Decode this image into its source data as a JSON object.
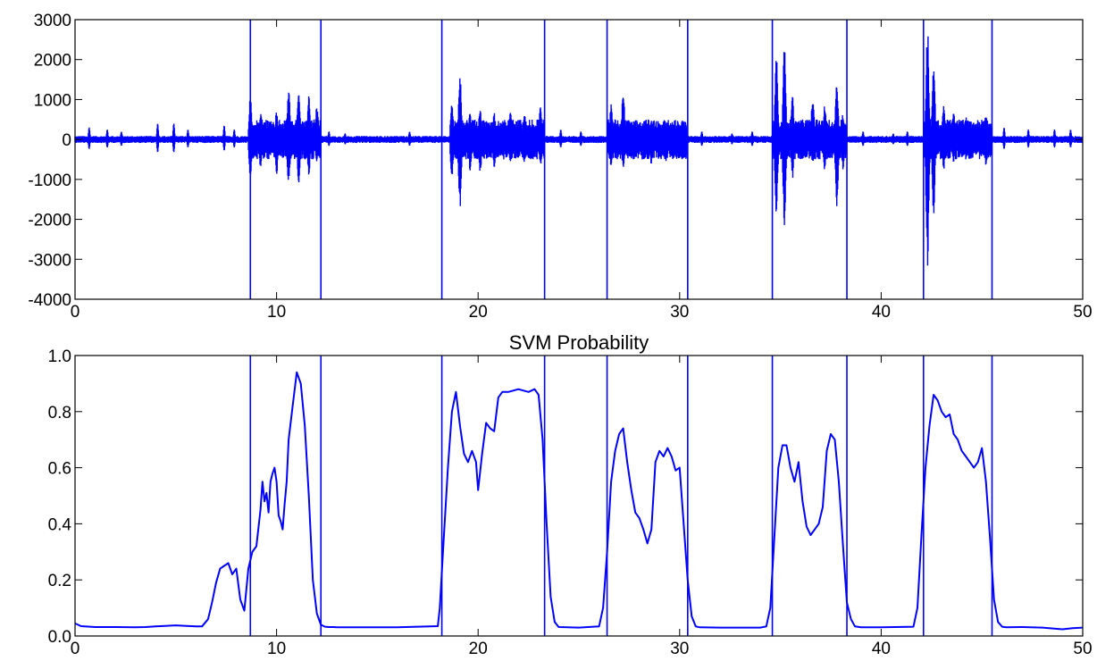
{
  "chart_data": [
    {
      "type": "line",
      "title": "",
      "xlabel": "",
      "ylabel": "",
      "xlim": [
        0,
        50
      ],
      "ylim": [
        -4000,
        3000
      ],
      "xticks": [
        "0",
        "10",
        "20",
        "30",
        "40",
        "50"
      ],
      "yticks": [
        "-4000",
        "-3000",
        "-2000",
        "-1000",
        "0",
        "1000",
        "2000",
        "3000"
      ],
      "line_color": "#0000ff",
      "vertical_markers": [
        8.7,
        12.2,
        18.2,
        23.3,
        26.4,
        30.4,
        34.6,
        38.3,
        42.1,
        45.5
      ],
      "series": [
        {
          "noise_baseline": 80,
          "bursts": [
            {
              "x": [
                8.6,
                12.2
              ],
              "peaks": [
                [
                  8.7,
                  1100,
                  -1000
                ],
                [
                  9.2,
                  700,
                  -700
                ],
                [
                  10.0,
                  700,
                  -900
                ],
                [
                  10.6,
                  1300,
                  -1200
                ],
                [
                  11.1,
                  1300,
                  -1200
                ],
                [
                  11.6,
                  1100,
                  -900
                ],
                [
                  12.0,
                  900,
                  -600
                ]
              ]
            },
            {
              "x": [
                18.6,
                23.3
              ],
              "peaks": [
                [
                  18.7,
                  900,
                  -1000
                ],
                [
                  19.1,
                  1800,
                  -1750
                ],
                [
                  19.6,
                  700,
                  -800
                ],
                [
                  20.1,
                  800,
                  -900
                ],
                [
                  20.8,
                  700,
                  -700
                ],
                [
                  21.6,
                  700,
                  -650
                ],
                [
                  22.3,
                  650,
                  -600
                ],
                [
                  23.1,
                  850,
                  -650
                ]
              ]
            },
            {
              "x": [
                26.4,
                30.4
              ],
              "peaks": [
                [
                  26.6,
                  900,
                  -700
                ],
                [
                  27.2,
                  1300,
                  -750
                ],
                [
                  27.6,
                  500,
                  -500
                ],
                [
                  28.6,
                  450,
                  -650
                ],
                [
                  29.3,
                  500,
                  -600
                ],
                [
                  30.1,
                  450,
                  -550
                ]
              ]
            },
            {
              "x": [
                34.6,
                38.3
              ],
              "peaks": [
                [
                  34.8,
                  2100,
                  -1900
                ],
                [
                  35.2,
                  2400,
                  -2200
                ],
                [
                  35.6,
                  1100,
                  -1000
                ],
                [
                  36.6,
                  1150,
                  -650
                ],
                [
                  37.2,
                  900,
                  -850
                ],
                [
                  37.8,
                  1550,
                  -1700
                ],
                [
                  38.1,
                  650,
                  -750
                ]
              ]
            },
            {
              "x": [
                42.1,
                45.5
              ],
              "peaks": [
                [
                  42.3,
                  2850,
                  -3250
                ],
                [
                  42.6,
                  2000,
                  -1900
                ],
                [
                  43.1,
                  900,
                  -800
                ],
                [
                  43.6,
                  700,
                  -600
                ],
                [
                  44.2,
                  600,
                  -500
                ],
                [
                  45.2,
                  650,
                  -650
                ]
              ]
            }
          ],
          "minor_events": [
            [
              0.7,
              300
            ],
            [
              1.6,
              250
            ],
            [
              2.3,
              200
            ],
            [
              4.1,
              400
            ],
            [
              4.9,
              400
            ],
            [
              5.6,
              250
            ],
            [
              7.4,
              350
            ],
            [
              7.9,
              250
            ],
            [
              12.6,
              200
            ],
            [
              13.4,
              150
            ],
            [
              16.6,
              200
            ],
            [
              24.1,
              250
            ],
            [
              25.1,
              200
            ],
            [
              31.1,
              200
            ],
            [
              32.6,
              150
            ],
            [
              33.6,
              200
            ],
            [
              39.1,
              200
            ],
            [
              40.6,
              150
            ],
            [
              41.3,
              200
            ],
            [
              46.1,
              300
            ],
            [
              47.3,
              250
            ],
            [
              48.6,
              250
            ],
            [
              49.4,
              250
            ]
          ]
        }
      ]
    },
    {
      "type": "line",
      "title": "SVM Probability",
      "xlabel": "",
      "ylabel": "",
      "xlim": [
        0,
        50
      ],
      "ylim": [
        0.0,
        1.0
      ],
      "xticks": [
        "0",
        "10",
        "20",
        "30",
        "40",
        "50"
      ],
      "yticks": [
        "0.0",
        "0.2",
        "0.4",
        "0.6",
        "0.8",
        "1.0"
      ],
      "line_color": "#0000ff",
      "vertical_markers": [
        8.7,
        12.2,
        18.2,
        23.3,
        26.4,
        30.4,
        34.6,
        38.3,
        42.1,
        45.5
      ],
      "series": [
        {
          "x": [
            0,
            0.3,
            1,
            2,
            3,
            3.5,
            4,
            5,
            6,
            6.3,
            6.6,
            6.8,
            7.0,
            7.2,
            7.4,
            7.6,
            7.8,
            8.0,
            8.2,
            8.4,
            8.6,
            8.8,
            9.0,
            9.2,
            9.3,
            9.4,
            9.5,
            9.6,
            9.7,
            9.8,
            9.9,
            10.0,
            10.1,
            10.2,
            10.3,
            10.4,
            10.5,
            10.6,
            10.8,
            11.0,
            11.2,
            11.4,
            11.6,
            11.8,
            12.0,
            12.2,
            12.4,
            12.6,
            12.8,
            13.0,
            14,
            16,
            18.0,
            18.1,
            18.3,
            18.5,
            18.7,
            18.9,
            19.1,
            19.3,
            19.5,
            19.7,
            19.9,
            20.0,
            20.2,
            20.4,
            20.6,
            20.8,
            21.0,
            21.2,
            21.5,
            22.0,
            22.5,
            22.8,
            23.0,
            23.2,
            23.4,
            23.6,
            23.8,
            24,
            25,
            26.0,
            26.2,
            26.4,
            26.6,
            26.8,
            27.0,
            27.2,
            27.4,
            27.6,
            27.8,
            28.0,
            28.2,
            28.4,
            28.6,
            28.8,
            29.0,
            29.2,
            29.4,
            29.6,
            29.8,
            30.0,
            30.2,
            30.4,
            30.6,
            30.8,
            31,
            32,
            34.0,
            34.3,
            34.5,
            34.7,
            34.9,
            35.1,
            35.3,
            35.5,
            35.7,
            35.9,
            36.1,
            36.3,
            36.5,
            36.7,
            36.9,
            37.1,
            37.3,
            37.5,
            37.7,
            37.9,
            38.1,
            38.3,
            38.5,
            38.7,
            39,
            40,
            41.6,
            41.8,
            42.0,
            42.2,
            42.4,
            42.6,
            42.8,
            43.0,
            43.2,
            43.4,
            43.6,
            43.8,
            44.0,
            44.2,
            44.4,
            44.6,
            44.8,
            45.0,
            45.2,
            45.4,
            45.6,
            45.8,
            46.0,
            46.2,
            47,
            48,
            49,
            49.5,
            50
          ],
          "y": [
            0.045,
            0.035,
            0.032,
            0.032,
            0.031,
            0.032,
            0.034,
            0.038,
            0.034,
            0.034,
            0.06,
            0.12,
            0.19,
            0.24,
            0.25,
            0.26,
            0.22,
            0.24,
            0.13,
            0.09,
            0.24,
            0.3,
            0.32,
            0.45,
            0.55,
            0.48,
            0.51,
            0.44,
            0.55,
            0.58,
            0.6,
            0.55,
            0.43,
            0.41,
            0.38,
            0.47,
            0.55,
            0.7,
            0.82,
            0.94,
            0.9,
            0.75,
            0.5,
            0.2,
            0.08,
            0.04,
            0.033,
            0.032,
            0.032,
            0.031,
            0.031,
            0.031,
            0.035,
            0.1,
            0.35,
            0.6,
            0.8,
            0.87,
            0.75,
            0.65,
            0.62,
            0.66,
            0.62,
            0.52,
            0.65,
            0.76,
            0.74,
            0.73,
            0.85,
            0.87,
            0.87,
            0.88,
            0.87,
            0.88,
            0.86,
            0.7,
            0.4,
            0.14,
            0.05,
            0.032,
            0.03,
            0.034,
            0.1,
            0.3,
            0.55,
            0.66,
            0.72,
            0.74,
            0.62,
            0.52,
            0.44,
            0.42,
            0.38,
            0.33,
            0.38,
            0.62,
            0.66,
            0.64,
            0.67,
            0.64,
            0.59,
            0.6,
            0.4,
            0.2,
            0.07,
            0.034,
            0.031,
            0.03,
            0.03,
            0.034,
            0.1,
            0.35,
            0.6,
            0.68,
            0.68,
            0.6,
            0.55,
            0.62,
            0.48,
            0.39,
            0.36,
            0.38,
            0.4,
            0.46,
            0.66,
            0.72,
            0.7,
            0.55,
            0.33,
            0.12,
            0.06,
            0.034,
            0.031,
            0.031,
            0.033,
            0.1,
            0.36,
            0.6,
            0.75,
            0.86,
            0.84,
            0.8,
            0.78,
            0.79,
            0.72,
            0.7,
            0.66,
            0.64,
            0.62,
            0.6,
            0.62,
            0.67,
            0.55,
            0.35,
            0.13,
            0.05,
            0.033,
            0.031,
            0.032,
            0.03,
            0.024,
            0.028,
            0.03
          ]
        }
      ]
    }
  ]
}
